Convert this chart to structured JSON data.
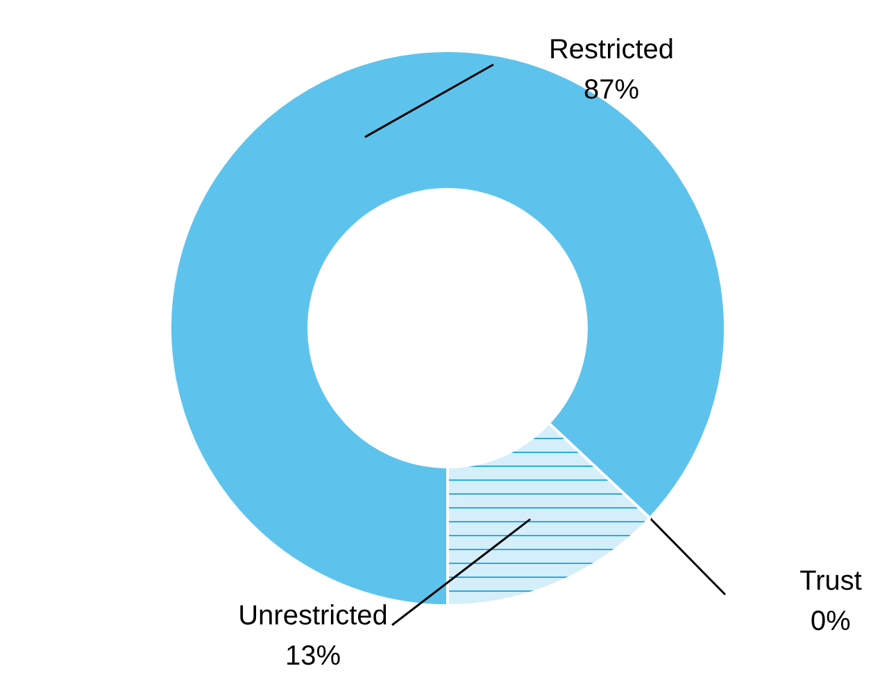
{
  "chart_data": {
    "type": "donut",
    "categories": [
      "Restricted",
      "Trust",
      "Unrestricted"
    ],
    "values": [
      87,
      0,
      13
    ],
    "value_labels": [
      "87%",
      "0%",
      "13%"
    ],
    "colors": [
      "#5ec3ec",
      "#29abe2",
      "#d4eefa"
    ]
  }
}
